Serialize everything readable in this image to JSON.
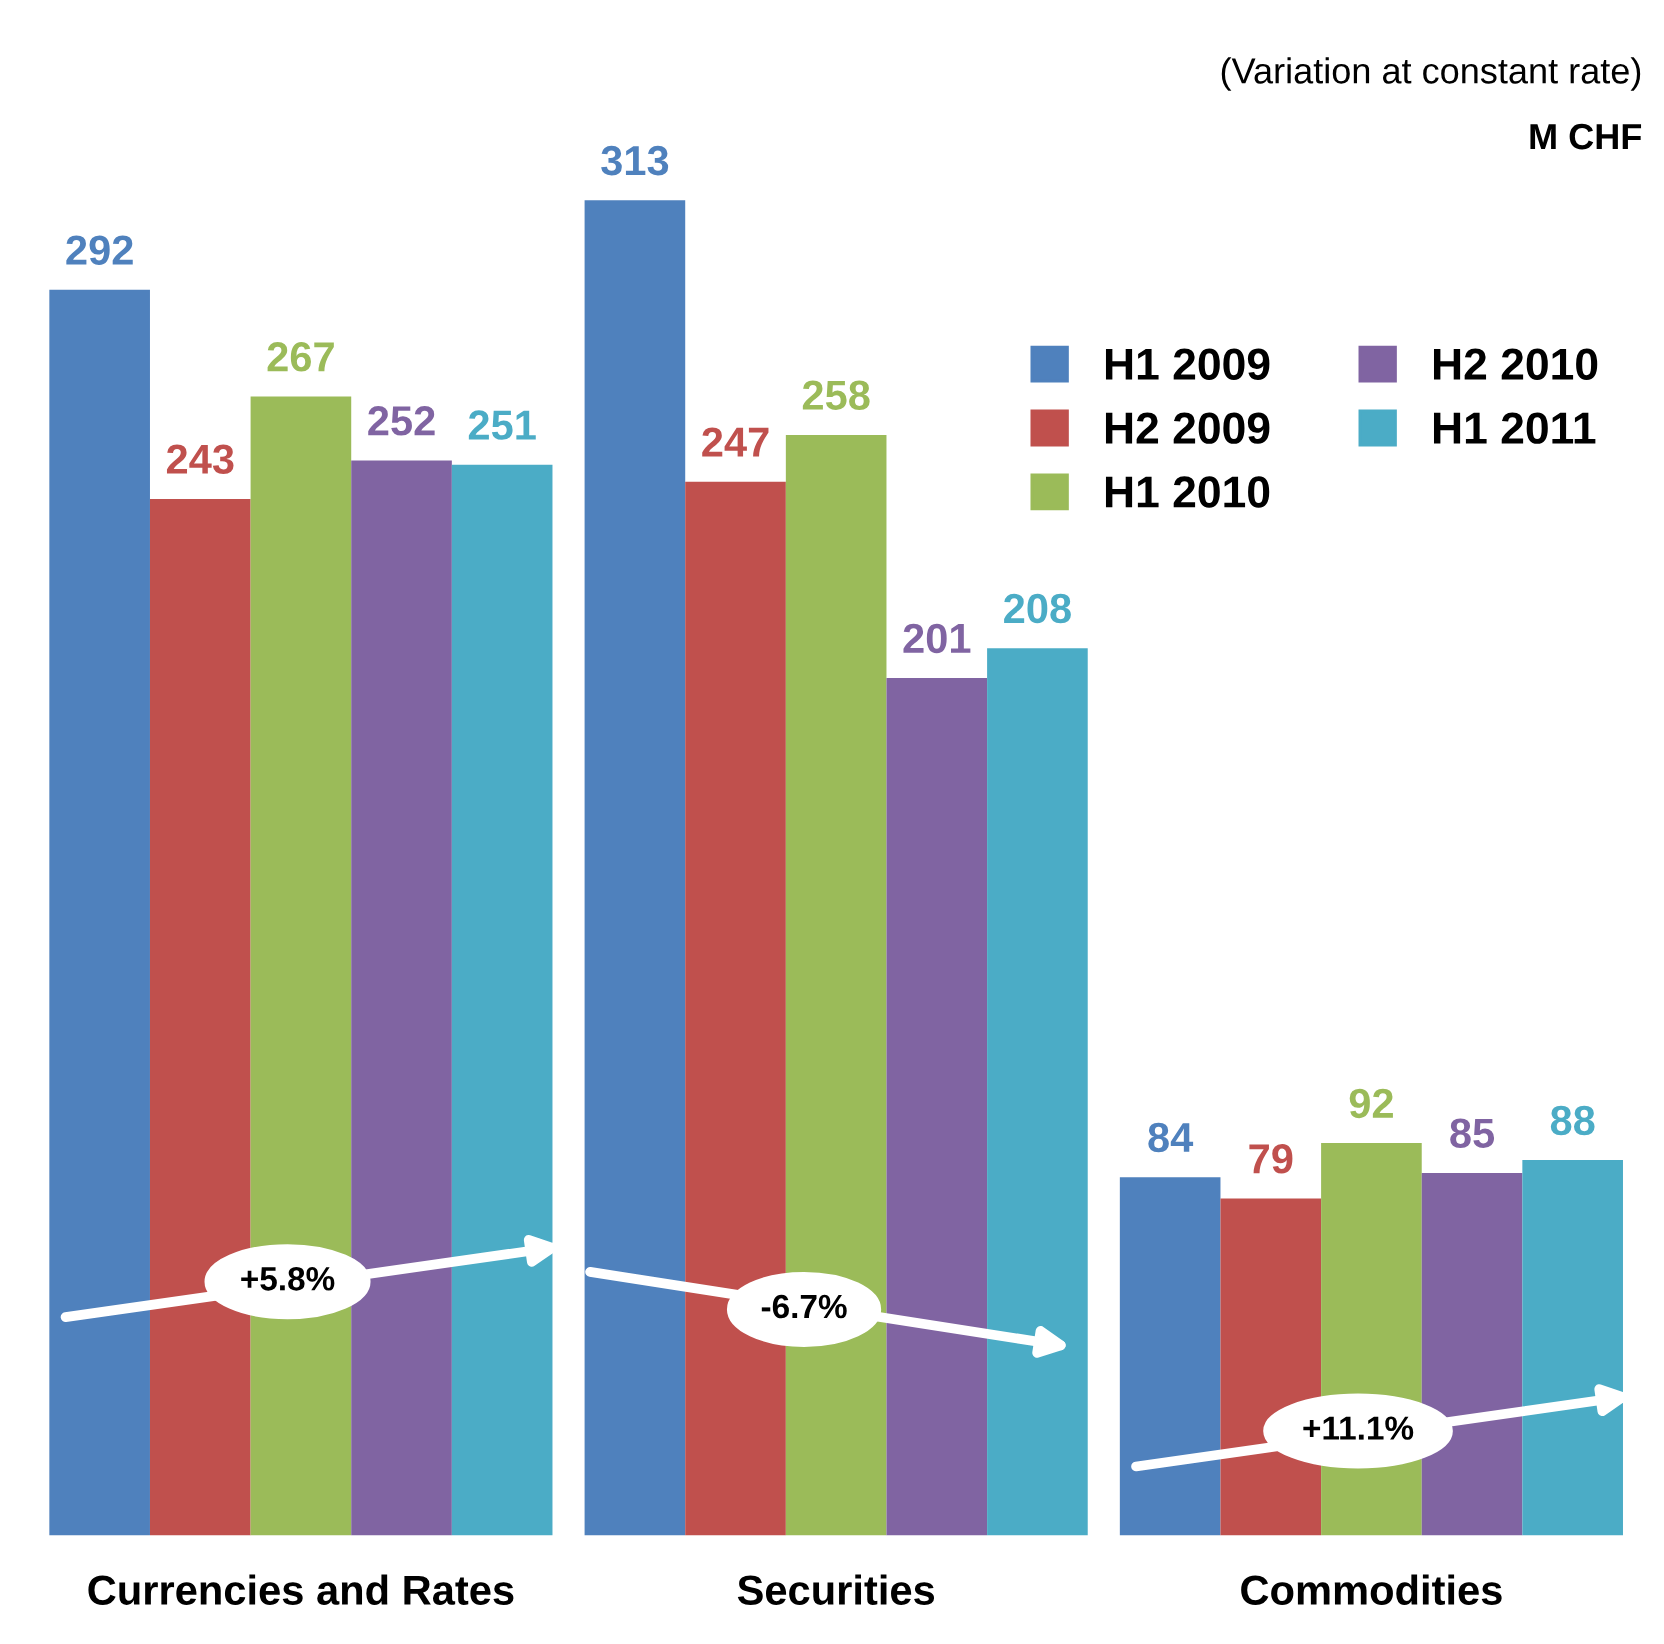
{
  "chart_data": {
    "type": "bar",
    "categories": [
      "Currencies and Rates",
      "Securities",
      "Commodities"
    ],
    "series": [
      {
        "name": "H1 2009",
        "color": "#4f81bd",
        "values": [
          292,
          313,
          84
        ]
      },
      {
        "name": "H2 2009",
        "color": "#c0504d",
        "values": [
          243,
          247,
          79
        ]
      },
      {
        "name": "H1 2010",
        "color": "#9bbb59",
        "values": [
          267,
          258,
          92
        ]
      },
      {
        "name": "H2 2010",
        "color": "#8064a2",
        "values": [
          252,
          201,
          85
        ]
      },
      {
        "name": "H1 2011",
        "color": "#4bacc6",
        "values": [
          251,
          208,
          88
        ]
      }
    ],
    "data_labels": true,
    "legend": "top right",
    "grid": false,
    "annotations": [
      "+5.8%",
      "-6.7%",
      "+11.1%",
      "(Variation at constant rate)",
      "M CHF"
    ]
  }
}
